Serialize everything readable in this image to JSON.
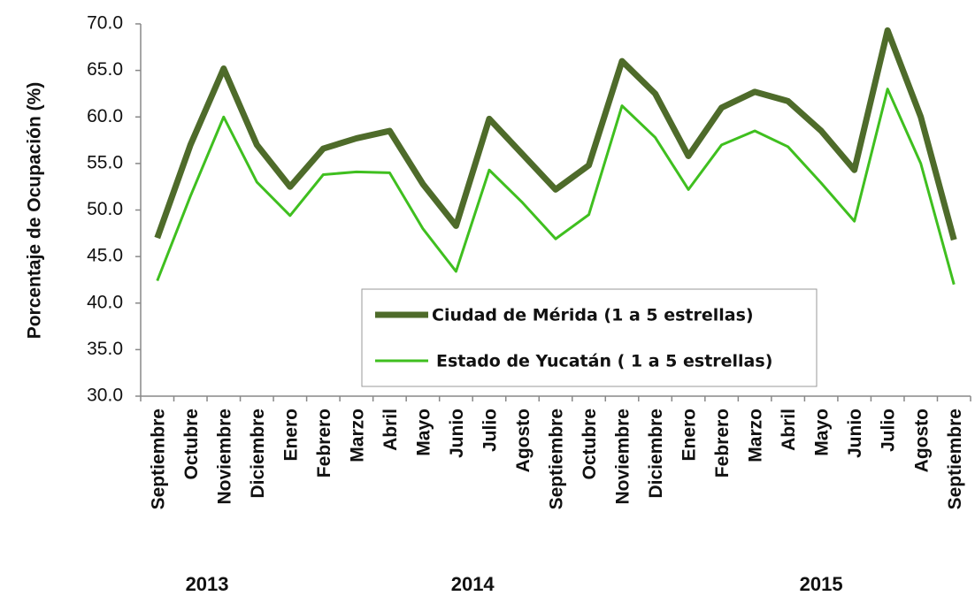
{
  "chart_data": {
    "type": "line",
    "y_label": "Porcentaje de Ocupación (%)",
    "categories": [
      "Septiembre",
      "Octubre",
      "Noviembre",
      "Diciembre",
      "Enero",
      "Febrero",
      "Marzo",
      "Abril",
      "Mayo",
      "Junio",
      "Julio",
      "Agosto",
      "Septiembre",
      "Octubre",
      "Noviembre",
      "Diciembre",
      "Enero",
      "Febrero",
      "Marzo",
      "Abril",
      "Mayo",
      "Junio",
      "Julio",
      "Agosto",
      "Septiembre"
    ],
    "x_groups": [
      {
        "label": "2013",
        "count": 4
      },
      {
        "label": "2014",
        "count": 12
      },
      {
        "label": "2015",
        "count": 9
      }
    ],
    "series": [
      {
        "name": "Ciudad de Mérida (1 a 5 estrellas)",
        "color": "#4e6b2a",
        "width": 7,
        "values": [
          47.0,
          57.0,
          65.2,
          57.0,
          52.5,
          56.6,
          57.7,
          58.5,
          52.8,
          48.3,
          59.8,
          56.0,
          52.2,
          54.8,
          66.0,
          62.5,
          55.8,
          61.0,
          62.7,
          61.7,
          58.5,
          54.3,
          69.3,
          60.0,
          46.8
        ]
      },
      {
        "name": "Estado de Yucatán ( 1 a 5 estrellas)",
        "color": "#3fbf1f",
        "width": 3,
        "values": [
          42.4,
          51.5,
          60.0,
          53.0,
          49.4,
          53.8,
          54.1,
          54.0,
          48.0,
          43.4,
          54.3,
          50.8,
          46.9,
          49.5,
          61.2,
          57.8,
          52.2,
          57.0,
          58.5,
          56.8,
          52.9,
          48.8,
          63.0,
          55.0,
          42.0
        ]
      }
    ],
    "ylim": [
      30,
      70
    ],
    "yticks": [
      {
        "value": 30,
        "label": "30.0"
      },
      {
        "value": 35,
        "label": "35.0"
      },
      {
        "value": 40,
        "label": "40.0"
      },
      {
        "value": 45,
        "label": "45.0"
      },
      {
        "value": 50,
        "label": "50.0"
      },
      {
        "value": 55,
        "label": "55.0"
      },
      {
        "value": 60,
        "label": "60.0"
      },
      {
        "value": 65,
        "label": "65.0"
      },
      {
        "value": 70,
        "label": "70.0"
      }
    ],
    "grid": false
  }
}
